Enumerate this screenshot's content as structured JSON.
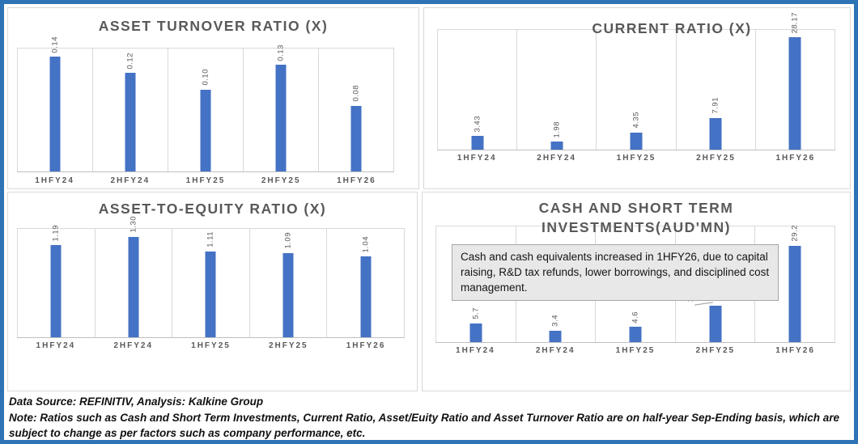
{
  "colors": {
    "bar": "#4472C4",
    "frame_border": "#2E74B5",
    "gridline": "#D9D9D9",
    "axis_line": "#BFBFBF",
    "title_text": "#595959",
    "annotation_bg": "#E9E8E8",
    "annotation_border": "#A6A6A6"
  },
  "chart_data": [
    {
      "type": "bar",
      "title": "ASSET TURNOVER RATIO (X)",
      "categories": [
        "1HFY24",
        "2HFY24",
        "1HFY25",
        "2HFY25",
        "1HFY26"
      ],
      "values": [
        0.14,
        0.12,
        0.1,
        0.13,
        0.08
      ],
      "labels": [
        "0.14",
        "0.12",
        "0.10",
        "0.13",
        "0.08"
      ],
      "ylim": [
        0,
        0.15
      ],
      "xlabel": "",
      "ylabel": "",
      "grid": "vertical-category-separators, top-gridline",
      "legend": "none",
      "data_label_orientation": "rotated-90"
    },
    {
      "type": "bar",
      "title": "CURRENT RATIO (X)",
      "categories": [
        "1HFY24",
        "2HFY24",
        "1HFY25",
        "2HFY25",
        "1HFY26"
      ],
      "values": [
        3.43,
        1.98,
        4.35,
        7.91,
        28.17
      ],
      "labels": [
        "3.43",
        "1.98",
        "4.35",
        "7.91",
        "28.17"
      ],
      "ylim": [
        0,
        30
      ],
      "xlabel": "",
      "ylabel": "",
      "grid": "vertical-category-separators, top-gridline",
      "legend": "none",
      "data_label_orientation": "rotated-90"
    },
    {
      "type": "bar",
      "title": "ASSET-TO-EQUITY RATIO (X)",
      "categories": [
        "1HFY24",
        "2HFY24",
        "1HFY25",
        "2HFY25",
        "1HFY26"
      ],
      "values": [
        1.19,
        1.3,
        1.11,
        1.09,
        1.04
      ],
      "labels": [
        "1.19",
        "1.30",
        "1.11",
        "1.09",
        "1.04"
      ],
      "ylim": [
        0,
        1.4
      ],
      "xlabel": "",
      "ylabel": "",
      "grid": "vertical-category-separators, top-gridline",
      "legend": "none",
      "data_label_orientation": "rotated-90"
    },
    {
      "type": "bar",
      "title": "CASH AND SHORT TERM\nINVESTMENTS(AUD'MN)",
      "categories": [
        "1HFY24",
        "2HFY24",
        "1HFY25",
        "2HFY25",
        "1HFY26"
      ],
      "values": [
        5.7,
        3.4,
        4.6,
        10.9,
        29.2
      ],
      "labels": [
        "5.7",
        "3.4",
        "4.6",
        "10.9",
        "29.2"
      ],
      "ylim": [
        0,
        35
      ],
      "xlabel": "",
      "ylabel": "",
      "grid": "vertical-category-separators, top-gridline",
      "legend": "none",
      "data_label_orientation": "rotated-90",
      "callout_index": 3
    }
  ],
  "annotation": {
    "text": "Cash and cash equivalents increased in 1HFY26, due to capital raising, R&D tax refunds, lower borrowings, and disciplined cost management."
  },
  "footer": {
    "source": "Data Source: REFINITIV, Analysis: Kalkine Group",
    "note": "Note: Ratios such as Cash and Short Term Investments, Current Ratio, Asset/Euity Ratio and Asset Turnover Ratio are on half-year Sep-Ending basis, which are subject to change as per factors such as company performance, etc."
  }
}
